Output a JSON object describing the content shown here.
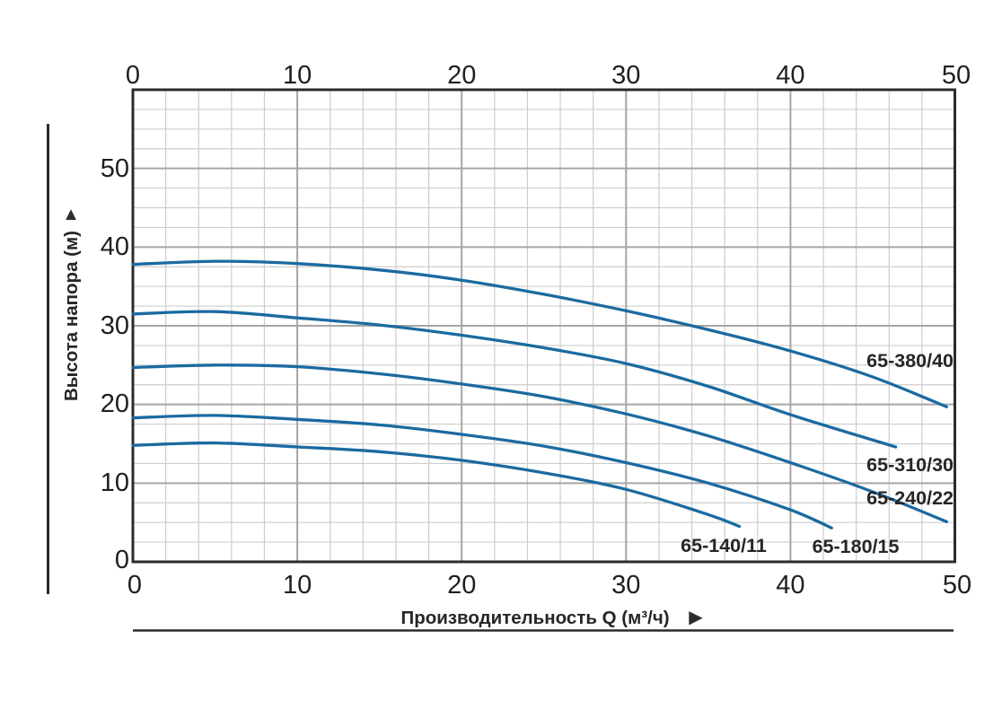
{
  "icons": {
    "up_arrow": "▲",
    "right_arrow": "▶"
  },
  "colors": {
    "curve": "#1b6aa0",
    "grid_minor": "#cdcdcd",
    "grid_major": "#a6a6a6",
    "frame": "#2b2b2b",
    "text": "#1f1f1f"
  },
  "chart_data": {
    "type": "line",
    "title": "",
    "xlabel": "Производительность Q (м³/ч)",
    "ylabel": "Высота напора (м)",
    "xlim": [
      0,
      50
    ],
    "ylim": [
      0,
      60
    ],
    "x_tick_step": 10,
    "x_minor_step": 2,
    "y_tick_step": 10,
    "y_minor_step": 2.5,
    "grid": true,
    "legend_position": "inline-labels",
    "x_ticks": [
      "0",
      "10",
      "20",
      "30",
      "40",
      "50"
    ],
    "y_ticks": [
      "0",
      "10",
      "20",
      "30",
      "40",
      "50"
    ],
    "series": [
      {
        "name": "65-380/40",
        "points": [
          [
            0,
            37.8
          ],
          [
            5,
            38.2
          ],
          [
            10,
            37.9
          ],
          [
            15,
            37.1
          ],
          [
            20,
            35.8
          ],
          [
            25,
            34.0
          ],
          [
            30,
            31.9
          ],
          [
            35,
            29.5
          ],
          [
            40,
            26.8
          ],
          [
            45,
            23.5
          ],
          [
            49.5,
            19.7
          ]
        ]
      },
      {
        "name": "65-310/30",
        "points": [
          [
            0,
            31.5
          ],
          [
            5,
            31.8
          ],
          [
            10,
            31.0
          ],
          [
            15,
            30.1
          ],
          [
            20,
            28.8
          ],
          [
            25,
            27.2
          ],
          [
            30,
            25.2
          ],
          [
            35,
            22.3
          ],
          [
            40,
            18.7
          ],
          [
            46.4,
            14.6
          ]
        ]
      },
      {
        "name": "65-240/22",
        "points": [
          [
            0,
            24.7
          ],
          [
            5,
            25.0
          ],
          [
            10,
            24.8
          ],
          [
            15,
            23.9
          ],
          [
            20,
            22.6
          ],
          [
            25,
            21.0
          ],
          [
            30,
            18.8
          ],
          [
            35,
            16.0
          ],
          [
            40,
            12.6
          ],
          [
            45,
            8.9
          ],
          [
            49.5,
            5.1
          ]
        ]
      },
      {
        "name": "65-180/15",
        "points": [
          [
            0,
            18.3
          ],
          [
            5,
            18.6
          ],
          [
            10,
            18.1
          ],
          [
            15,
            17.4
          ],
          [
            20,
            16.2
          ],
          [
            25,
            14.7
          ],
          [
            30,
            12.6
          ],
          [
            35,
            10.0
          ],
          [
            40,
            6.6
          ],
          [
            42.5,
            4.3
          ]
        ]
      },
      {
        "name": "65-140/11",
        "points": [
          [
            0,
            14.8
          ],
          [
            5,
            15.1
          ],
          [
            10,
            14.6
          ],
          [
            15,
            14.0
          ],
          [
            20,
            12.9
          ],
          [
            25,
            11.3
          ],
          [
            30,
            9.2
          ],
          [
            35,
            6.0
          ],
          [
            36.9,
            4.5
          ]
        ]
      }
    ]
  }
}
